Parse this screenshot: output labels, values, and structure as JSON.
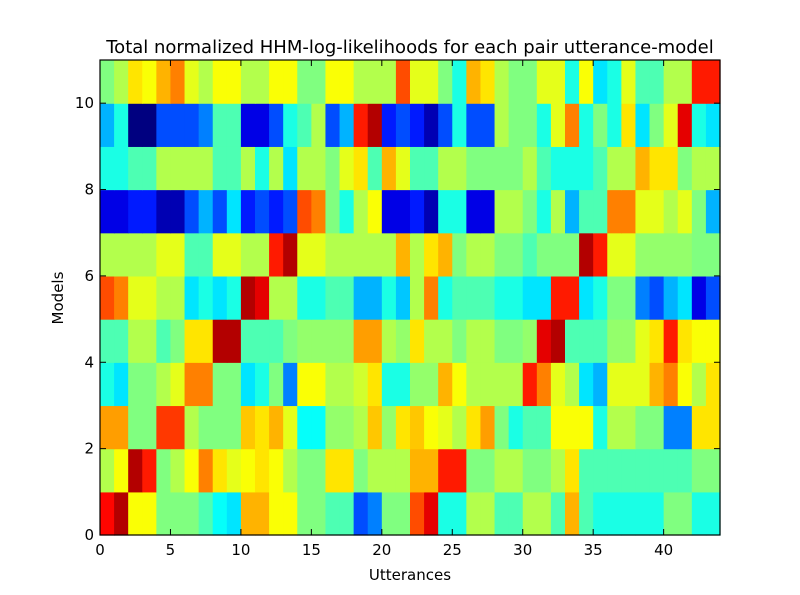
{
  "chart_data": {
    "type": "heatmap",
    "title": "Total normalized HHM-log-likelihoods for each pair utterance-model",
    "xlabel": "Utterances",
    "ylabel": "Models",
    "xlim": [
      0,
      44
    ],
    "ylim": [
      0,
      11
    ],
    "x_ticks": [
      0,
      5,
      10,
      15,
      20,
      25,
      30,
      35,
      40
    ],
    "y_ticks": [
      0,
      2,
      4,
      6,
      8,
      10
    ],
    "colormap": "jet",
    "value_range": [
      0,
      1
    ],
    "grid": false,
    "rows": 11,
    "cols": 44,
    "matrix": [
      [
        0.87,
        0.95,
        0.62,
        0.62,
        0.5,
        0.5,
        0.5,
        0.45,
        0.38,
        0.35,
        0.7,
        0.7,
        0.62,
        0.62,
        0.5,
        0.5,
        0.45,
        0.45,
        0.2,
        0.25,
        0.5,
        0.5,
        0.8,
        0.9,
        0.4,
        0.4,
        0.55,
        0.55,
        0.45,
        0.45,
        0.55,
        0.55,
        0.45,
        0.7,
        0.45,
        0.4,
        0.4,
        0.4,
        0.4,
        0.4,
        0.5,
        0.5,
        0.4,
        0.4
      ],
      [
        0.55,
        0.62,
        0.95,
        0.85,
        0.5,
        0.55,
        0.62,
        0.75,
        0.65,
        0.6,
        0.62,
        0.65,
        0.62,
        0.55,
        0.5,
        0.5,
        0.65,
        0.65,
        0.5,
        0.55,
        0.55,
        0.55,
        0.7,
        0.7,
        0.85,
        0.85,
        0.5,
        0.5,
        0.55,
        0.55,
        0.5,
        0.5,
        0.55,
        0.65,
        0.45,
        0.45,
        0.45,
        0.45,
        0.45,
        0.45,
        0.45,
        0.45,
        0.5,
        0.5
      ],
      [
        0.72,
        0.72,
        0.5,
        0.5,
        0.82,
        0.82,
        0.55,
        0.5,
        0.5,
        0.5,
        0.68,
        0.65,
        0.7,
        0.6,
        0.38,
        0.38,
        0.52,
        0.52,
        0.55,
        0.68,
        0.52,
        0.65,
        0.68,
        0.62,
        0.6,
        0.55,
        0.65,
        0.72,
        0.5,
        0.4,
        0.45,
        0.45,
        0.62,
        0.62,
        0.62,
        0.4,
        0.55,
        0.55,
        0.5,
        0.5,
        0.25,
        0.25,
        0.65,
        0.65
      ],
      [
        0.4,
        0.35,
        0.5,
        0.5,
        0.55,
        0.6,
        0.75,
        0.75,
        0.5,
        0.5,
        0.35,
        0.4,
        0.5,
        0.25,
        0.62,
        0.62,
        0.55,
        0.55,
        0.58,
        0.65,
        0.4,
        0.4,
        0.52,
        0.52,
        0.7,
        0.62,
        0.55,
        0.55,
        0.55,
        0.55,
        0.85,
        0.75,
        0.6,
        0.55,
        0.35,
        0.3,
        0.6,
        0.6,
        0.6,
        0.7,
        0.75,
        0.62,
        0.55,
        0.65
      ],
      [
        0.45,
        0.45,
        0.55,
        0.55,
        0.45,
        0.5,
        0.65,
        0.65,
        0.95,
        0.95,
        0.45,
        0.45,
        0.45,
        0.5,
        0.52,
        0.52,
        0.52,
        0.52,
        0.72,
        0.72,
        0.55,
        0.52,
        0.65,
        0.55,
        0.55,
        0.5,
        0.55,
        0.55,
        0.5,
        0.5,
        0.52,
        0.9,
        0.95,
        0.45,
        0.45,
        0.45,
        0.52,
        0.52,
        0.6,
        0.65,
        0.85,
        0.65,
        0.62,
        0.62
      ],
      [
        0.8,
        0.75,
        0.6,
        0.6,
        0.55,
        0.55,
        0.35,
        0.4,
        0.35,
        0.4,
        0.95,
        0.9,
        0.55,
        0.55,
        0.4,
        0.4,
        0.45,
        0.45,
        0.3,
        0.3,
        0.4,
        0.32,
        0.55,
        0.75,
        0.4,
        0.45,
        0.45,
        0.45,
        0.4,
        0.4,
        0.35,
        0.35,
        0.85,
        0.85,
        0.35,
        0.4,
        0.5,
        0.5,
        0.25,
        0.2,
        0.3,
        0.35,
        0.1,
        0.2
      ],
      [
        0.55,
        0.55,
        0.55,
        0.55,
        0.6,
        0.6,
        0.45,
        0.45,
        0.6,
        0.6,
        0.55,
        0.55,
        0.85,
        0.95,
        0.6,
        0.6,
        0.55,
        0.55,
        0.55,
        0.55,
        0.55,
        0.7,
        0.55,
        0.65,
        0.7,
        0.5,
        0.55,
        0.55,
        0.5,
        0.5,
        0.45,
        0.5,
        0.5,
        0.5,
        0.95,
        0.85,
        0.6,
        0.6,
        0.52,
        0.52,
        0.52,
        0.52,
        0.5,
        0.5
      ],
      [
        0.1,
        0.1,
        0.15,
        0.15,
        0.05,
        0.05,
        0.2,
        0.3,
        0.2,
        0.35,
        0.15,
        0.2,
        0.15,
        0.2,
        0.8,
        0.75,
        0.5,
        0.4,
        0.55,
        0.62,
        0.1,
        0.1,
        0.15,
        0.05,
        0.4,
        0.4,
        0.1,
        0.1,
        0.55,
        0.55,
        0.5,
        0.4,
        0.55,
        0.3,
        0.45,
        0.45,
        0.75,
        0.75,
        0.6,
        0.6,
        0.55,
        0.6,
        0.5,
        0.3
      ],
      [
        0.4,
        0.4,
        0.45,
        0.45,
        0.55,
        0.55,
        0.55,
        0.55,
        0.45,
        0.45,
        0.55,
        0.4,
        0.55,
        0.35,
        0.55,
        0.55,
        0.5,
        0.6,
        0.65,
        0.45,
        0.7,
        0.6,
        0.45,
        0.45,
        0.55,
        0.55,
        0.5,
        0.5,
        0.5,
        0.5,
        0.55,
        0.45,
        0.4,
        0.4,
        0.4,
        0.45,
        0.55,
        0.55,
        0.7,
        0.65,
        0.65,
        0.5,
        0.55,
        0.55
      ],
      [
        0.3,
        0.4,
        0.0,
        0.0,
        0.2,
        0.2,
        0.2,
        0.25,
        0.45,
        0.45,
        0.1,
        0.1,
        0.2,
        0.4,
        0.45,
        0.55,
        0.2,
        0.3,
        0.85,
        0.95,
        0.15,
        0.2,
        0.15,
        0.05,
        0.2,
        0.4,
        0.2,
        0.2,
        0.55,
        0.5,
        0.5,
        0.4,
        0.6,
        0.75,
        0.4,
        0.5,
        0.4,
        0.65,
        0.35,
        0.5,
        0.6,
        0.9,
        0.4,
        0.35
      ],
      [
        0.5,
        0.55,
        0.65,
        0.62,
        0.7,
        0.75,
        0.6,
        0.55,
        0.62,
        0.62,
        0.55,
        0.55,
        0.62,
        0.62,
        0.5,
        0.5,
        0.62,
        0.62,
        0.55,
        0.55,
        0.55,
        0.8,
        0.6,
        0.6,
        0.5,
        0.4,
        0.7,
        0.65,
        0.55,
        0.5,
        0.5,
        0.6,
        0.6,
        0.4,
        0.62,
        0.35,
        0.4,
        0.6,
        0.45,
        0.45,
        0.55,
        0.55,
        0.85,
        0.85
      ]
    ]
  }
}
